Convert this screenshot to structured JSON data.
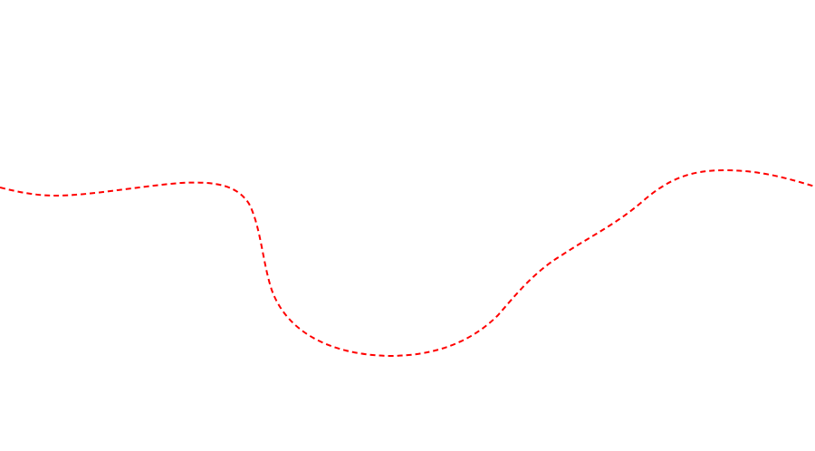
{
  "canvas": {
    "background_color": "#ffffff"
  },
  "curve": {
    "name": "dashed-wavy-line",
    "stroke_color": "#ff0000",
    "style": "dashed"
  }
}
